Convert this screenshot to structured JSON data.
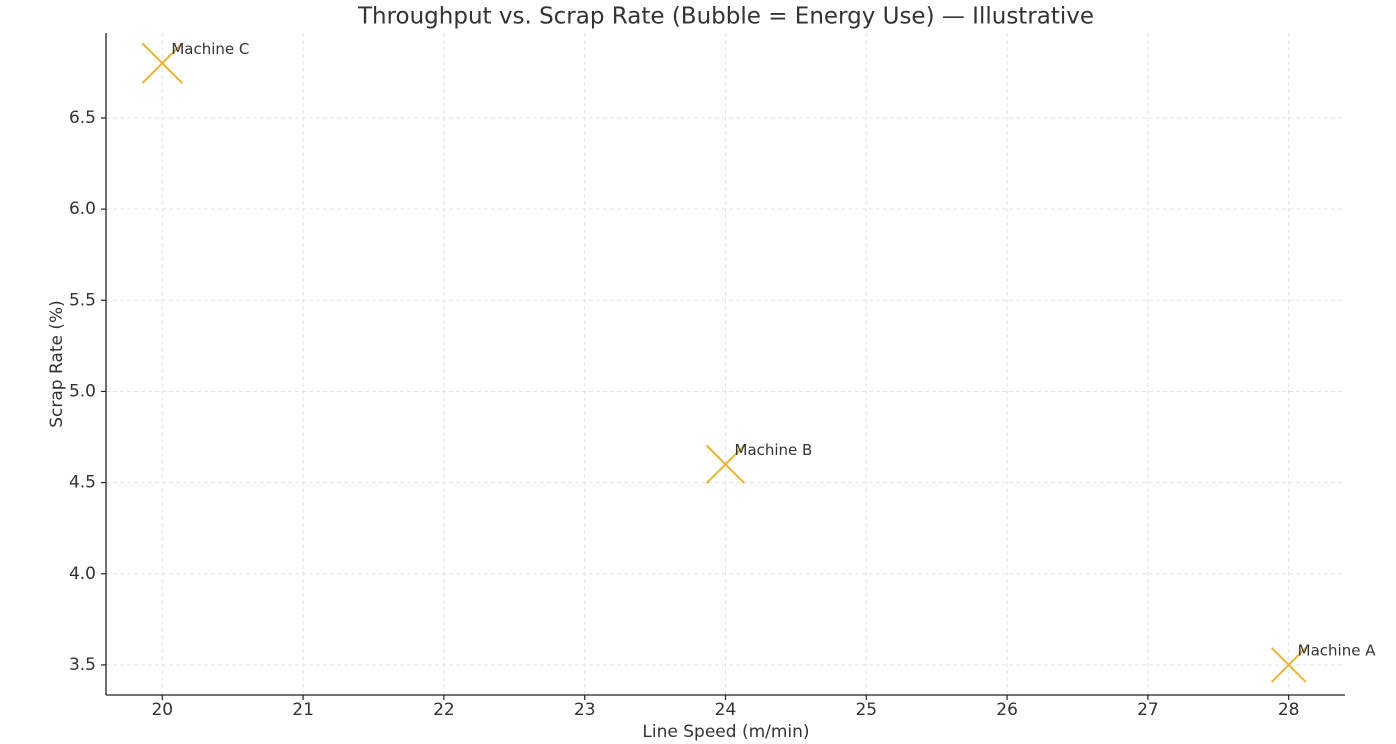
{
  "chart_data": {
    "type": "scatter",
    "title": "Throughput vs. Scrap Rate (Bubble = Energy Use) — Illustrative",
    "x_label": "Line Speed (m/min)",
    "y_label": "Scrap Rate (%)",
    "x": [
      28,
      24,
      20
    ],
    "values": [
      3.5,
      4.6,
      6.8
    ],
    "sizes": [
      290,
      360,
      400
    ],
    "labels": [
      "Machine A",
      "Machine B",
      "Machine C"
    ],
    "color": "#e8b63c",
    "marker": "x",
    "xlim": [
      19.6,
      28.4
    ],
    "xticks": [
      20,
      21,
      22,
      23,
      24,
      25,
      26,
      27,
      28
    ],
    "ylim": [
      3.335,
      6.966
    ],
    "yticks": [
      3.5,
      {
        "value": 4,
        "label": "4.0"
      },
      4.5,
      {
        "value": 5,
        "label": "5.0"
      },
      5.5,
      {
        "value": 6,
        "label": "6.0"
      },
      6.5
    ],
    "grid": true
  }
}
